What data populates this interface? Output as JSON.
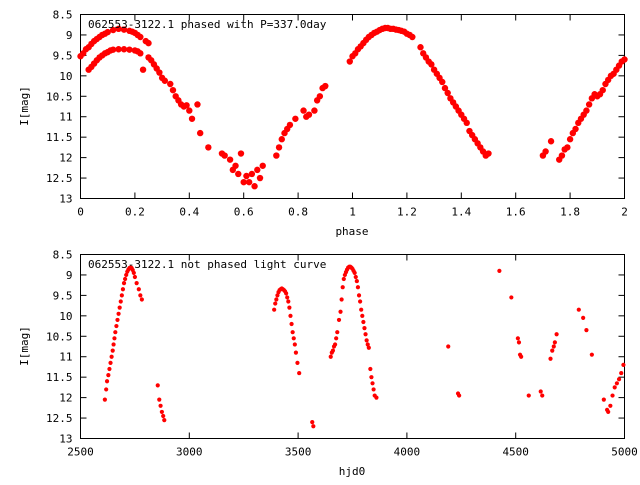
{
  "chart_data": [
    {
      "type": "scatter",
      "title": "062553-3122.1 phased with P=337.0day",
      "xlabel": "phase",
      "ylabel": "I[mag]",
      "xlim": [
        0,
        2
      ],
      "ylim": [
        8.5,
        13
      ],
      "y_inverted": true,
      "grid": false,
      "marker": "plus",
      "color": "#ff0000",
      "x_ticks": [
        "0",
        "0.2",
        "0.4",
        "0.6",
        "0.8",
        "1",
        "1.2",
        "1.4",
        "1.6",
        "1.8",
        "2"
      ],
      "y_ticks": [
        "8.5",
        "9",
        "9.5",
        "10",
        "10.5",
        "11",
        "11.5",
        "12",
        "12.5",
        "13"
      ],
      "points": [
        [
          0.0,
          9.52
        ],
        [
          0.01,
          9.45
        ],
        [
          0.02,
          9.35
        ],
        [
          0.03,
          9.3
        ],
        [
          0.04,
          9.22
        ],
        [
          0.05,
          9.15
        ],
        [
          0.06,
          9.1
        ],
        [
          0.07,
          9.05
        ],
        [
          0.08,
          9.0
        ],
        [
          0.09,
          8.97
        ],
        [
          0.1,
          8.93
        ],
        [
          0.12,
          8.88
        ],
        [
          0.14,
          8.85
        ],
        [
          0.16,
          8.87
        ],
        [
          0.18,
          8.9
        ],
        [
          0.19,
          8.92
        ],
        [
          0.2,
          8.95
        ],
        [
          0.21,
          9.0
        ],
        [
          0.22,
          9.05
        ],
        [
          0.24,
          9.15
        ],
        [
          0.25,
          9.2
        ],
        [
          0.03,
          9.85
        ],
        [
          0.04,
          9.78
        ],
        [
          0.05,
          9.7
        ],
        [
          0.06,
          9.62
        ],
        [
          0.07,
          9.55
        ],
        [
          0.08,
          9.5
        ],
        [
          0.09,
          9.45
        ],
        [
          0.1,
          9.42
        ],
        [
          0.11,
          9.38
        ],
        [
          0.12,
          9.36
        ],
        [
          0.14,
          9.35
        ],
        [
          0.16,
          9.35
        ],
        [
          0.18,
          9.36
        ],
        [
          0.2,
          9.38
        ],
        [
          0.21,
          9.4
        ],
        [
          0.22,
          9.45
        ],
        [
          0.23,
          9.85
        ],
        [
          0.25,
          9.55
        ],
        [
          0.26,
          9.62
        ],
        [
          0.27,
          9.72
        ],
        [
          0.28,
          9.82
        ],
        [
          0.29,
          9.92
        ],
        [
          0.3,
          10.05
        ],
        [
          0.31,
          10.12
        ],
        [
          0.33,
          10.2
        ],
        [
          0.34,
          10.35
        ],
        [
          0.35,
          10.5
        ],
        [
          0.36,
          10.6
        ],
        [
          0.37,
          10.7
        ],
        [
          0.38,
          10.75
        ],
        [
          0.39,
          10.72
        ],
        [
          0.4,
          10.85
        ],
        [
          0.41,
          11.05
        ],
        [
          0.43,
          10.7
        ],
        [
          0.44,
          11.4
        ],
        [
          0.47,
          11.75
        ],
        [
          0.52,
          11.9
        ],
        [
          0.53,
          11.95
        ],
        [
          0.55,
          12.05
        ],
        [
          0.56,
          12.3
        ],
        [
          0.57,
          12.2
        ],
        [
          0.58,
          12.4
        ],
        [
          0.59,
          11.9
        ],
        [
          0.6,
          12.6
        ],
        [
          0.61,
          12.45
        ],
        [
          0.62,
          12.6
        ],
        [
          0.63,
          12.4
        ],
        [
          0.64,
          12.7
        ],
        [
          0.65,
          12.3
        ],
        [
          0.66,
          12.5
        ],
        [
          0.67,
          12.2
        ],
        [
          0.72,
          11.95
        ],
        [
          0.73,
          11.75
        ],
        [
          0.74,
          11.55
        ],
        [
          0.75,
          11.4
        ],
        [
          0.76,
          11.3
        ],
        [
          0.77,
          11.2
        ],
        [
          0.79,
          11.05
        ],
        [
          0.82,
          10.85
        ],
        [
          0.83,
          11.0
        ],
        [
          0.84,
          10.95
        ],
        [
          0.86,
          10.85
        ],
        [
          0.87,
          10.6
        ],
        [
          0.88,
          10.5
        ],
        [
          0.89,
          10.3
        ],
        [
          0.9,
          10.25
        ],
        [
          0.99,
          9.65
        ],
        [
          1.0,
          9.52
        ],
        [
          1.01,
          9.45
        ],
        [
          1.02,
          9.35
        ],
        [
          1.03,
          9.28
        ],
        [
          1.04,
          9.2
        ],
        [
          1.05,
          9.12
        ],
        [
          1.06,
          9.05
        ],
        [
          1.07,
          9.0
        ],
        [
          1.08,
          8.95
        ],
        [
          1.09,
          8.92
        ],
        [
          1.1,
          8.88
        ],
        [
          1.11,
          8.85
        ],
        [
          1.12,
          8.83
        ],
        [
          1.13,
          8.83
        ],
        [
          1.14,
          8.85
        ],
        [
          1.15,
          8.85
        ],
        [
          1.16,
          8.87
        ],
        [
          1.17,
          8.88
        ],
        [
          1.18,
          8.9
        ],
        [
          1.19,
          8.92
        ],
        [
          1.2,
          8.97
        ],
        [
          1.21,
          9.0
        ],
        [
          1.22,
          9.05
        ],
        [
          1.25,
          9.3
        ],
        [
          1.26,
          9.45
        ],
        [
          1.27,
          9.55
        ],
        [
          1.28,
          9.65
        ],
        [
          1.29,
          9.72
        ],
        [
          1.3,
          9.85
        ],
        [
          1.31,
          9.95
        ],
        [
          1.32,
          10.05
        ],
        [
          1.33,
          10.15
        ],
        [
          1.34,
          10.3
        ],
        [
          1.35,
          10.42
        ],
        [
          1.36,
          10.55
        ],
        [
          1.37,
          10.65
        ],
        [
          1.38,
          10.75
        ],
        [
          1.39,
          10.85
        ],
        [
          1.4,
          10.95
        ],
        [
          1.41,
          11.05
        ],
        [
          1.42,
          11.15
        ],
        [
          1.43,
          11.35
        ],
        [
          1.44,
          11.45
        ],
        [
          1.45,
          11.55
        ],
        [
          1.46,
          11.65
        ],
        [
          1.47,
          11.75
        ],
        [
          1.48,
          11.85
        ],
        [
          1.49,
          11.95
        ],
        [
          1.5,
          11.9
        ],
        [
          1.7,
          11.95
        ],
        [
          1.71,
          11.85
        ],
        [
          1.73,
          11.6
        ],
        [
          1.76,
          12.05
        ],
        [
          1.77,
          11.95
        ],
        [
          1.78,
          11.8
        ],
        [
          1.79,
          11.75
        ],
        [
          1.8,
          11.55
        ],
        [
          1.81,
          11.4
        ],
        [
          1.82,
          11.3
        ],
        [
          1.83,
          11.15
        ],
        [
          1.84,
          11.05
        ],
        [
          1.85,
          10.95
        ],
        [
          1.86,
          10.85
        ],
        [
          1.87,
          10.7
        ],
        [
          1.88,
          10.55
        ],
        [
          1.89,
          10.45
        ],
        [
          1.9,
          10.5
        ],
        [
          1.91,
          10.45
        ],
        [
          1.92,
          10.35
        ],
        [
          1.93,
          10.2
        ],
        [
          1.94,
          10.1
        ],
        [
          1.95,
          10.0
        ],
        [
          1.96,
          9.95
        ],
        [
          1.97,
          9.85
        ],
        [
          1.98,
          9.75
        ],
        [
          1.99,
          9.65
        ],
        [
          2.0,
          9.6
        ]
      ]
    },
    {
      "type": "scatter",
      "title": "062553-3122.1 not phased light curve",
      "xlabel": "hjd0",
      "ylabel": "I[mag]",
      "xlim": [
        2500,
        5000
      ],
      "ylim": [
        8.5,
        13
      ],
      "y_inverted": true,
      "grid": false,
      "marker": "dot",
      "color": "#ff0000",
      "x_ticks": [
        "2500",
        "3000",
        "3500",
        "4000",
        "4500",
        "5000"
      ],
      "y_ticks": [
        "8.5",
        "9",
        "9.5",
        "10",
        "10.5",
        "11",
        "11.5",
        "12",
        "12.5",
        "13"
      ],
      "points": [
        [
          2612,
          12.05
        ],
        [
          2618,
          11.8
        ],
        [
          2622,
          11.6
        ],
        [
          2628,
          11.45
        ],
        [
          2633,
          11.3
        ],
        [
          2638,
          11.15
        ],
        [
          2643,
          11.0
        ],
        [
          2648,
          10.85
        ],
        [
          2652,
          10.7
        ],
        [
          2656,
          10.55
        ],
        [
          2660,
          10.4
        ],
        [
          2665,
          10.25
        ],
        [
          2670,
          10.1
        ],
        [
          2675,
          9.95
        ],
        [
          2680,
          9.8
        ],
        [
          2685,
          9.65
        ],
        [
          2690,
          9.5
        ],
        [
          2695,
          9.35
        ],
        [
          2700,
          9.2
        ],
        [
          2705,
          9.1
        ],
        [
          2710,
          9.0
        ],
        [
          2715,
          8.92
        ],
        [
          2720,
          8.87
        ],
        [
          2725,
          8.83
        ],
        [
          2730,
          8.82
        ],
        [
          2735,
          8.83
        ],
        [
          2740,
          8.88
        ],
        [
          2745,
          8.95
        ],
        [
          2750,
          9.05
        ],
        [
          2758,
          9.2
        ],
        [
          2768,
          9.35
        ],
        [
          2775,
          9.5
        ],
        [
          2782,
          9.6
        ],
        [
          2855,
          11.7
        ],
        [
          2862,
          12.05
        ],
        [
          2868,
          12.2
        ],
        [
          2874,
          12.35
        ],
        [
          2880,
          12.45
        ],
        [
          2885,
          12.55
        ],
        [
          3390,
          9.85
        ],
        [
          3395,
          9.7
        ],
        [
          3400,
          9.6
        ],
        [
          3405,
          9.5
        ],
        [
          3410,
          9.42
        ],
        [
          3415,
          9.37
        ],
        [
          3420,
          9.35
        ],
        [
          3425,
          9.33
        ],
        [
          3430,
          9.35
        ],
        [
          3435,
          9.37
        ],
        [
          3440,
          9.4
        ],
        [
          3445,
          9.45
        ],
        [
          3450,
          9.55
        ],
        [
          3455,
          9.65
        ],
        [
          3460,
          9.8
        ],
        [
          3465,
          10.0
        ],
        [
          3470,
          10.2
        ],
        [
          3475,
          10.4
        ],
        [
          3480,
          10.55
        ],
        [
          3485,
          10.7
        ],
        [
          3490,
          10.9
        ],
        [
          3497,
          11.15
        ],
        [
          3505,
          11.4
        ],
        [
          3565,
          12.6
        ],
        [
          3570,
          12.7
        ],
        [
          3650,
          11.0
        ],
        [
          3655,
          10.9
        ],
        [
          3660,
          10.85
        ],
        [
          3665,
          10.75
        ],
        [
          3670,
          10.7
        ],
        [
          3675,
          10.55
        ],
        [
          3680,
          10.4
        ],
        [
          3688,
          10.1
        ],
        [
          3695,
          9.9
        ],
        [
          3700,
          9.6
        ],
        [
          3705,
          9.3
        ],
        [
          3710,
          9.1
        ],
        [
          3715,
          9.0
        ],
        [
          3720,
          8.93
        ],
        [
          3725,
          8.87
        ],
        [
          3730,
          8.82
        ],
        [
          3735,
          8.8
        ],
        [
          3740,
          8.8
        ],
        [
          3745,
          8.82
        ],
        [
          3750,
          8.85
        ],
        [
          3755,
          8.9
        ],
        [
          3760,
          8.95
        ],
        [
          3765,
          9.05
        ],
        [
          3770,
          9.15
        ],
        [
          3775,
          9.3
        ],
        [
          3780,
          9.5
        ],
        [
          3785,
          9.65
        ],
        [
          3790,
          9.85
        ],
        [
          3795,
          10.0
        ],
        [
          3800,
          10.15
        ],
        [
          3805,
          10.3
        ],
        [
          3810,
          10.45
        ],
        [
          3815,
          10.6
        ],
        [
          3820,
          10.7
        ],
        [
          3825,
          10.78
        ],
        [
          3832,
          11.3
        ],
        [
          3837,
          11.5
        ],
        [
          3842,
          11.65
        ],
        [
          3847,
          11.8
        ],
        [
          3852,
          11.95
        ],
        [
          3860,
          12.0
        ],
        [
          4190,
          10.75
        ],
        [
          4235,
          11.9
        ],
        [
          4240,
          11.95
        ],
        [
          4425,
          8.9
        ],
        [
          4480,
          9.55
        ],
        [
          4510,
          10.55
        ],
        [
          4515,
          10.65
        ],
        [
          4520,
          10.95
        ],
        [
          4525,
          11.0
        ],
        [
          4560,
          11.95
        ],
        [
          4615,
          11.85
        ],
        [
          4622,
          11.95
        ],
        [
          4660,
          11.05
        ],
        [
          4668,
          10.85
        ],
        [
          4675,
          10.75
        ],
        [
          4680,
          10.65
        ],
        [
          4688,
          10.45
        ],
        [
          4790,
          9.85
        ],
        [
          4810,
          10.05
        ],
        [
          4825,
          10.35
        ],
        [
          4850,
          10.95
        ],
        [
          4905,
          12.05
        ],
        [
          4920,
          12.3
        ],
        [
          4925,
          12.35
        ],
        [
          4935,
          12.2
        ],
        [
          4945,
          11.95
        ],
        [
          4955,
          11.75
        ],
        [
          4965,
          11.65
        ],
        [
          4975,
          11.55
        ],
        [
          4985,
          11.4
        ],
        [
          4995,
          11.2
        ]
      ]
    }
  ]
}
